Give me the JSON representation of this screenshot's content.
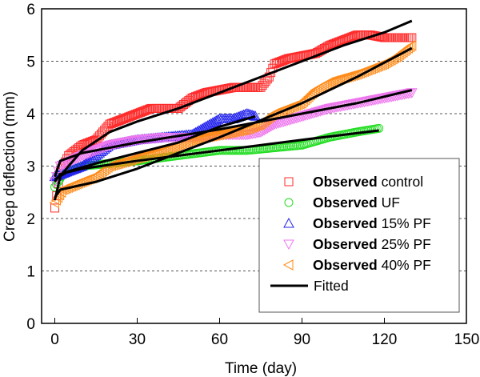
{
  "chart_data": {
    "type": "scatter",
    "xlabel": "Time (day)",
    "ylabel": "Creep deflection (mm)",
    "xlim": [
      0,
      150
    ],
    "ylim": [
      0,
      6
    ],
    "xticks": [
      "0",
      "30",
      "60",
      "90",
      "120",
      "150"
    ],
    "yticks": [
      "0",
      "1",
      "2",
      "3",
      "4",
      "5",
      "6"
    ],
    "grid": "horizontal dashed",
    "legend_position": "bottom-right",
    "series": [
      {
        "name_bold": "Observed",
        "name": "control",
        "marker": "square",
        "color": "#ff2a2a",
        "points": [
          [
            0,
            2.2
          ],
          [
            2,
            2.9
          ],
          [
            5,
            3.2
          ],
          [
            10,
            3.4
          ],
          [
            15,
            3.5
          ],
          [
            20,
            3.8
          ],
          [
            25,
            3.9
          ],
          [
            30,
            4.0
          ],
          [
            35,
            4.1
          ],
          [
            40,
            4.1
          ],
          [
            45,
            4.1
          ],
          [
            50,
            4.3
          ],
          [
            55,
            4.4
          ],
          [
            60,
            4.45
          ],
          [
            65,
            4.5
          ],
          [
            70,
            4.5
          ],
          [
            75,
            4.5
          ],
          [
            78,
            4.7
          ],
          [
            80,
            4.95
          ],
          [
            85,
            5.05
          ],
          [
            90,
            5.1
          ],
          [
            95,
            5.15
          ],
          [
            100,
            5.3
          ],
          [
            105,
            5.4
          ],
          [
            110,
            5.5
          ],
          [
            115,
            5.5
          ],
          [
            120,
            5.45
          ],
          [
            130,
            5.45
          ]
        ]
      },
      {
        "name_bold": "Observed",
        "name": "UF",
        "marker": "circle",
        "color": "#22dd22",
        "points": [
          [
            0,
            2.6
          ],
          [
            3,
            2.85
          ],
          [
            10,
            3.0
          ],
          [
            20,
            3.05
          ],
          [
            30,
            3.1
          ],
          [
            45,
            3.2
          ],
          [
            60,
            3.3
          ],
          [
            70,
            3.3
          ],
          [
            80,
            3.35
          ],
          [
            90,
            3.4
          ],
          [
            100,
            3.55
          ],
          [
            110,
            3.65
          ],
          [
            118,
            3.72
          ]
        ]
      },
      {
        "name_bold": "Observed",
        "name": "15% PF",
        "marker": "triangle-up",
        "color": "#2222ee",
        "points": [
          [
            0,
            2.8
          ],
          [
            5,
            2.9
          ],
          [
            10,
            3.0
          ],
          [
            15,
            3.2
          ],
          [
            20,
            3.4
          ],
          [
            30,
            3.5
          ],
          [
            40,
            3.55
          ],
          [
            50,
            3.6
          ],
          [
            55,
            3.75
          ],
          [
            60,
            3.9
          ],
          [
            65,
            3.9
          ],
          [
            70,
            4.0
          ],
          [
            73,
            3.95
          ]
        ]
      },
      {
        "name_bold": "Observed",
        "name": "25% PF",
        "marker": "triangle-down",
        "color": "#ee77ee",
        "points": [
          [
            0,
            2.7
          ],
          [
            2,
            3.0
          ],
          [
            10,
            3.2
          ],
          [
            20,
            3.4
          ],
          [
            30,
            3.5
          ],
          [
            40,
            3.55
          ],
          [
            50,
            3.55
          ],
          [
            60,
            3.6
          ],
          [
            70,
            3.6
          ],
          [
            75,
            3.65
          ],
          [
            80,
            3.8
          ],
          [
            90,
            3.95
          ],
          [
            100,
            4.1
          ],
          [
            110,
            4.2
          ],
          [
            120,
            4.3
          ],
          [
            130,
            4.4
          ]
        ]
      },
      {
        "name_bold": "Observed",
        "name": "40% PF",
        "marker": "triangle-left",
        "color": "#ff8c1a",
        "points": [
          [
            0,
            2.3
          ],
          [
            3,
            2.55
          ],
          [
            10,
            2.7
          ],
          [
            15,
            2.8
          ],
          [
            20,
            3.0
          ],
          [
            30,
            3.15
          ],
          [
            40,
            3.3
          ],
          [
            50,
            3.5
          ],
          [
            60,
            3.6
          ],
          [
            70,
            3.7
          ],
          [
            75,
            3.8
          ],
          [
            80,
            4.0
          ],
          [
            90,
            4.2
          ],
          [
            95,
            4.45
          ],
          [
            100,
            4.6
          ],
          [
            110,
            4.75
          ],
          [
            120,
            4.95
          ],
          [
            125,
            5.1
          ],
          [
            130,
            5.3
          ]
        ]
      }
    ],
    "fitted": {
      "name": "Fitted",
      "color": "#000000",
      "curves": [
        [
          [
            0,
            2.35
          ],
          [
            2,
            2.8
          ],
          [
            5,
            3.0
          ],
          [
            10,
            3.3
          ],
          [
            20,
            3.65
          ],
          [
            30,
            3.85
          ],
          [
            45,
            4.1
          ],
          [
            60,
            4.4
          ],
          [
            75,
            4.7
          ],
          [
            90,
            5.0
          ],
          [
            105,
            5.3
          ],
          [
            120,
            5.55
          ],
          [
            130,
            5.77
          ]
        ],
        [
          [
            0,
            2.7
          ],
          [
            2,
            2.85
          ],
          [
            10,
            2.95
          ],
          [
            30,
            3.1
          ],
          [
            60,
            3.3
          ],
          [
            90,
            3.5
          ],
          [
            118,
            3.68
          ]
        ],
        [
          [
            0,
            2.75
          ],
          [
            5,
            2.9
          ],
          [
            15,
            3.05
          ],
          [
            30,
            3.25
          ],
          [
            45,
            3.45
          ],
          [
            60,
            3.75
          ],
          [
            73,
            3.95
          ]
        ],
        [
          [
            0,
            2.8
          ],
          [
            2,
            3.1
          ],
          [
            10,
            3.25
          ],
          [
            30,
            3.45
          ],
          [
            60,
            3.7
          ],
          [
            90,
            4.0
          ],
          [
            110,
            4.2
          ],
          [
            130,
            4.45
          ]
        ],
        [
          [
            0,
            2.4
          ],
          [
            2,
            2.55
          ],
          [
            15,
            2.7
          ],
          [
            30,
            2.95
          ],
          [
            60,
            3.55
          ],
          [
            90,
            4.2
          ],
          [
            110,
            4.7
          ],
          [
            130,
            5.25
          ]
        ]
      ]
    }
  }
}
